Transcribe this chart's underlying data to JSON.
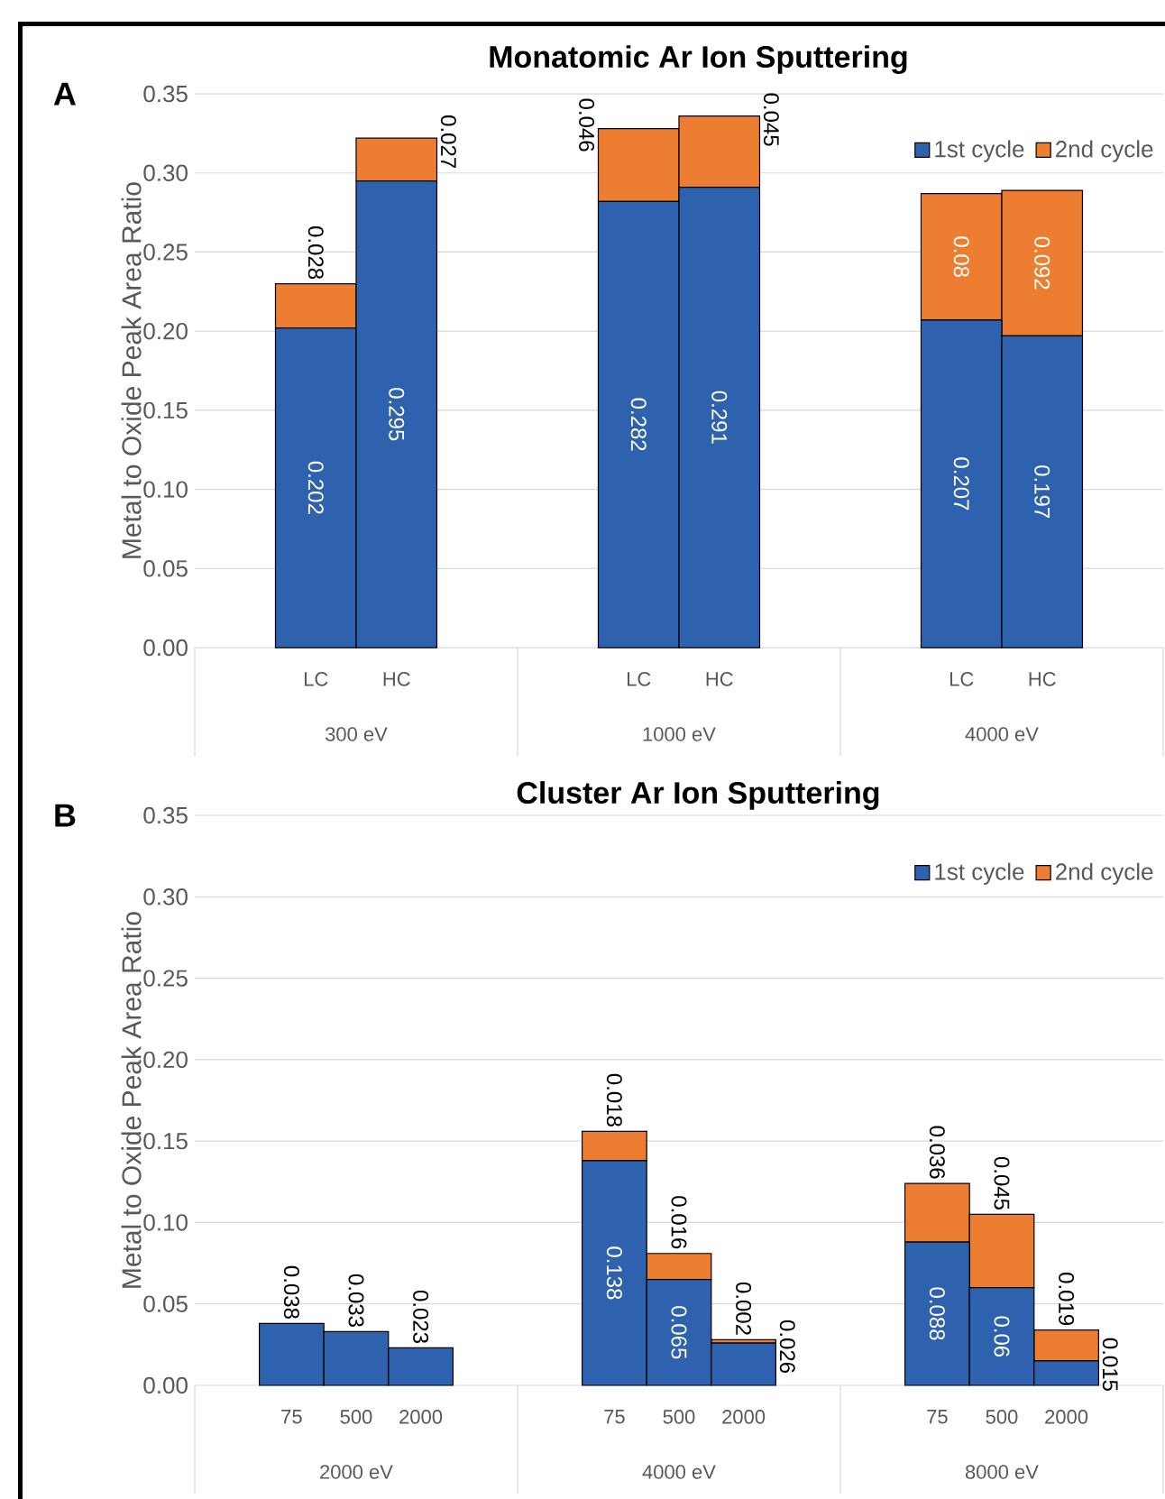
{
  "chart_data": [
    {
      "type": "bar",
      "stacked": true,
      "title": "Monatomic Ar Ion Sputtering",
      "ylabel": "Metal to Oxide Peak Area Ratio",
      "categories": [
        null,
        "LC",
        "HC",
        null,
        null,
        "LC",
        "HC",
        null,
        null,
        "LC",
        "HC",
        null
      ],
      "series": [
        {
          "name": "1st cycle",
          "color": "#2e62ae",
          "values": [
            null,
            0.202,
            0.295,
            null,
            null,
            0.282,
            0.291,
            null,
            null,
            0.207,
            0.197,
            null
          ]
        },
        {
          "name": "2nd cycle",
          "color": "#ed7d31",
          "values": [
            null,
            0.028,
            0.027,
            null,
            null,
            0.046,
            0.045,
            null,
            null,
            0.08,
            0.092,
            null
          ]
        }
      ],
      "ylim": [
        0,
        0.35
      ],
      "yticks": [
        {
          "value": 0,
          "label": "0.00"
        },
        {
          "value": 0.05,
          "label": "0.05"
        },
        {
          "value": 0.1,
          "label": "0.10"
        },
        {
          "value": 0.15,
          "label": "0.15"
        },
        {
          "value": 0.2,
          "label": "0.20"
        },
        {
          "value": 0.25,
          "label": "0.25"
        },
        {
          "value": 0.3,
          "label": "0.30"
        },
        {
          "value": 0.35,
          "label": "0.35"
        }
      ],
      "grid": "y",
      "legend": "top right",
      "data_labels": true,
      "annotations": [
        "A",
        "300 eV",
        "1000 eV",
        "4000 eV"
      ]
    },
    {
      "type": "bar",
      "stacked": true,
      "title": "Cluster Ar Ion Sputtering",
      "ylabel": "Metal to Oxide Peak Area Ratio",
      "categories": [
        null,
        "75",
        "500",
        "2000",
        null,
        null,
        "75",
        "500",
        "2000",
        null,
        null,
        "75",
        "500",
        "2000",
        null
      ],
      "series": [
        {
          "name": "1st cycle",
          "color": "#2e62ae",
          "values": [
            null,
            0.038,
            0.033,
            0.023,
            null,
            null,
            0.138,
            0.065,
            0.026,
            null,
            null,
            0.088,
            0.06,
            0.015,
            null
          ]
        },
        {
          "name": "2nd cycle",
          "color": "#ed7d31",
          "values": [
            null,
            null,
            null,
            null,
            null,
            null,
            0.018,
            0.016,
            0.002,
            null,
            null,
            0.036,
            0.045,
            0.019,
            null
          ]
        }
      ],
      "ylim": [
        0,
        0.35
      ],
      "yticks": [
        {
          "value": 0,
          "label": "0.00"
        },
        {
          "value": 0.05,
          "label": "0.05"
        },
        {
          "value": 0.1,
          "label": "0.10"
        },
        {
          "value": 0.15,
          "label": "0.15"
        },
        {
          "value": 0.2,
          "label": "0.20"
        },
        {
          "value": 0.25,
          "label": "0.25"
        },
        {
          "value": 0.3,
          "label": "0.30"
        },
        {
          "value": 0.35,
          "label": "0.35"
        }
      ],
      "grid": "y",
      "legend": "top right",
      "data_labels": true,
      "annotations": [
        "B",
        "2000 eV",
        "4000 eV",
        "8000 eV"
      ]
    }
  ]
}
